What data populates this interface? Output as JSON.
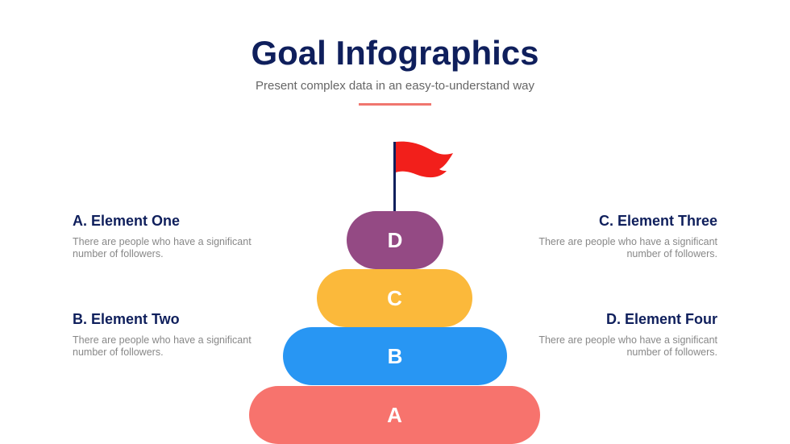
{
  "header": {
    "title": "Goal Infographics",
    "subtitle": "Present complex data in an easy-to-understand way"
  },
  "elements": [
    {
      "title": "A. Element One",
      "text": "There are people who have a significant number of followers."
    },
    {
      "title": "B. Element Two",
      "text": "There are people who have a significant number of followers."
    },
    {
      "title": "C. Element Three",
      "text": "There are people who have a significant number of followers."
    },
    {
      "title": "D. Element Four",
      "text": "There are people who have a significant number of followers."
    }
  ],
  "pyramid": [
    {
      "label": "D",
      "color": "#944a84"
    },
    {
      "label": "C",
      "color": "#fbb93b"
    },
    {
      "label": "B",
      "color": "#2896f3"
    },
    {
      "label": "A",
      "color": "#f7736d"
    }
  ],
  "colors": {
    "flag": "#f21f1b",
    "pole": "#0f1f5c",
    "accent": "#f0766e"
  }
}
